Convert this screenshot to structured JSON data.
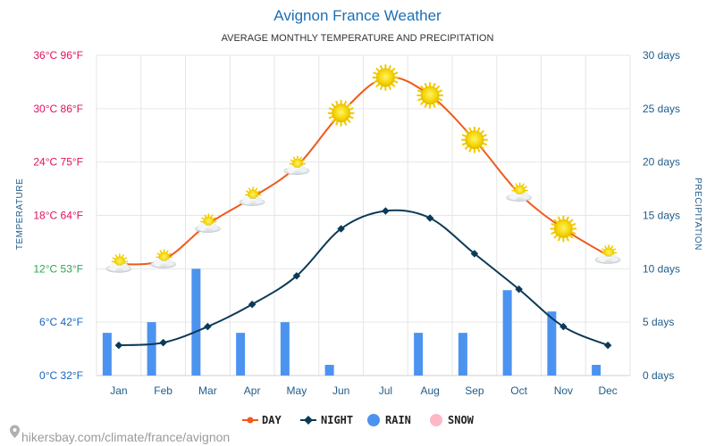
{
  "colors": {
    "day": "#f05a1a",
    "night": "#0b3a57",
    "rain": "#4c93f0",
    "snow": "#ffb6c6",
    "left_ticks": [
      "#1565c0",
      "#1565c0",
      "#2ba84a",
      "#e0115f",
      "#e0115f",
      "#e0115f",
      "#e0115f"
    ]
  },
  "chart_data": {
    "type": "line",
    "title": "Avignon France Weather",
    "subtitle": "AVERAGE MONTHLY TEMPERATURE AND PRECIPITATION",
    "categories": [
      "Jan",
      "Feb",
      "Mar",
      "Apr",
      "May",
      "Jun",
      "Jul",
      "Aug",
      "Sep",
      "Oct",
      "Nov",
      "Dec"
    ],
    "series": [
      {
        "name": "DAY",
        "type": "line",
        "axis": "temperature_c",
        "values": [
          12.5,
          13,
          17,
          20,
          23.5,
          29.5,
          33.5,
          31.5,
          26.5,
          20.5,
          16.5,
          13.5
        ],
        "icons": [
          "partly-cloudy-icon",
          "partly-cloudy-icon",
          "partly-cloudy-icon",
          "partly-cloudy-icon",
          "partly-cloudy-icon",
          "sun-icon",
          "sun-icon",
          "sun-icon",
          "sun-icon",
          "partly-cloudy-icon",
          "sun-icon",
          "partly-cloudy-icon"
        ]
      },
      {
        "name": "NIGHT",
        "type": "line",
        "axis": "temperature_c",
        "values": [
          3.4,
          3.7,
          5.5,
          8,
          11.2,
          16.5,
          18.5,
          17.7,
          13.7,
          9.7,
          5.5,
          3.4
        ]
      },
      {
        "name": "RAIN",
        "type": "bar",
        "axis": "precipitation_days",
        "values": [
          4,
          5,
          10,
          4,
          5,
          1,
          0,
          4,
          4,
          8,
          6,
          1
        ]
      },
      {
        "name": "SNOW",
        "type": "bar",
        "axis": "precipitation_days",
        "values": [
          0,
          0,
          0,
          0,
          0,
          0,
          0,
          0,
          0,
          0,
          0,
          0
        ]
      }
    ],
    "y_left": {
      "label": "TEMPERATURE",
      "range": [
        0,
        36
      ],
      "ticks": [
        "0°C 32°F",
        "6°C 42°F",
        "12°C 53°F",
        "18°C 64°F",
        "24°C 75°F",
        "30°C 86°F",
        "36°C 96°F"
      ]
    },
    "y_right": {
      "label": "PRECIPITATION",
      "range": [
        0,
        30
      ],
      "ticks": [
        "0 days",
        "5 days",
        "10 days",
        "15 days",
        "20 days",
        "25 days",
        "30 days"
      ]
    },
    "grid": true,
    "legend_position": "bottom"
  },
  "footer": {
    "source": "hikersbay.com/climate/france/avignon"
  }
}
